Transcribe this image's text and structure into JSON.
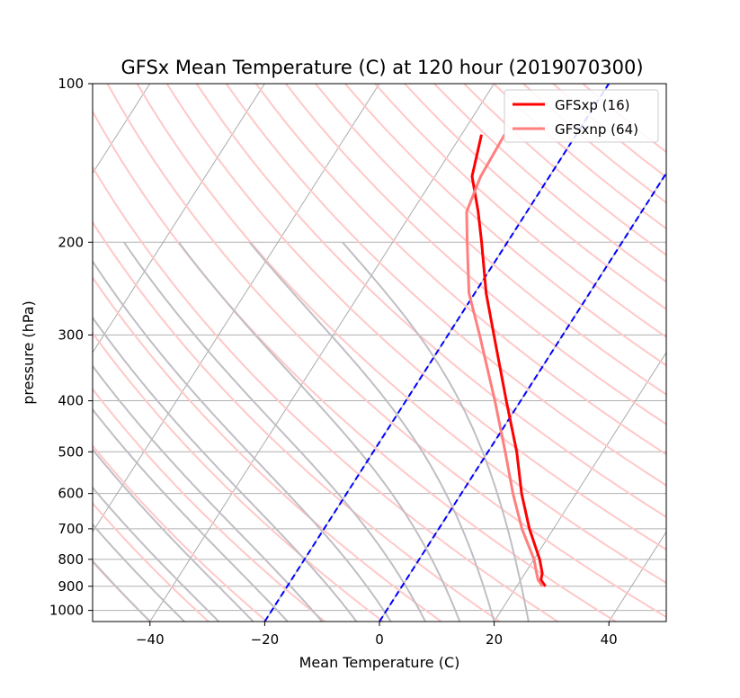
{
  "chart_data": {
    "type": "line",
    "title": "GFSx Mean Temperature (C) at 120 hour  (2019070300)",
    "xlabel": "Mean Temperature (C)",
    "ylabel": "pressure (hPa)",
    "xlim": [
      -50,
      50
    ],
    "ylim": [
      1050,
      100
    ],
    "y_scale": "log",
    "x_ticks": [
      "−40",
      "−20",
      "0",
      "20",
      "40"
    ],
    "x_tick_values": [
      -40,
      -20,
      0,
      20,
      40
    ],
    "y_ticks": [
      "100",
      "200",
      "300",
      "400",
      "500",
      "600",
      "700",
      "800",
      "900",
      "1000"
    ],
    "y_tick_values": [
      100,
      200,
      300,
      400,
      500,
      600,
      700,
      800,
      900,
      1000
    ],
    "grid": "horizontal at pressure ticks",
    "legend_position": "top-right",
    "skew_t": true,
    "series": [
      {
        "name": "GFSxp (16)",
        "color": "#ff0000",
        "pressure": [
          900,
          875,
          850,
          800,
          700,
          600,
          500,
          400,
          300,
          250,
          200,
          175,
          150,
          125
        ],
        "temperature": [
          25.0,
          23.5,
          23.0,
          21.0,
          15.8,
          10.5,
          5.0,
          -2.5,
          -12.0,
          -18.0,
          -24.5,
          -28.5,
          -33.5,
          -36.5
        ]
      },
      {
        "name": "GFSxnp (64)",
        "color": "#ff7f7f",
        "pressure": [
          900,
          875,
          850,
          800,
          700,
          600,
          500,
          400,
          300,
          250,
          200,
          175,
          150,
          125
        ],
        "temperature": [
          24.5,
          23.0,
          22.0,
          20.0,
          14.5,
          9.0,
          3.0,
          -4.5,
          -14.5,
          -21.0,
          -27.0,
          -30.5,
          -32.0,
          -32.5
        ]
      }
    ],
    "reference_lines": {
      "isotherm_color": "#aaaaaa",
      "dry_adiabat_color": "#ffc8c8",
      "moist_adiabat_color": "#c0bec4",
      "highlight_isotherm_color": "#0000ff",
      "highlight_isotherms": [
        -20,
        0
      ]
    }
  }
}
